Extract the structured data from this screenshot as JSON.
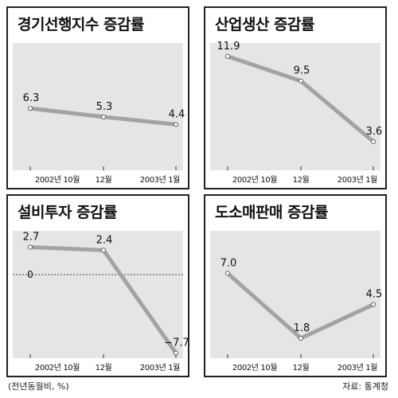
{
  "footer": {
    "unit_note": "(전년동월비, %)",
    "source": "자료: 통계청"
  },
  "chart_data": [
    {
      "type": "line",
      "title": "경기선행지수 증감률",
      "categories": [
        "2002년 10월",
        "12월",
        "2003년 1월"
      ],
      "values": [
        6.3,
        5.3,
        4.4
      ],
      "value_labels": [
        "6.3",
        "5.3",
        "4.4"
      ],
      "ylim": [
        -1,
        14
      ],
      "zero_line": false,
      "grid": false,
      "colors": {
        "line": "#a3a3a3",
        "plot_bg": "#e5e5e5"
      }
    },
    {
      "type": "line",
      "title": "산업생산 증감률",
      "categories": [
        "2002년 10월",
        "12월",
        "2003년 1월"
      ],
      "values": [
        11.9,
        9.5,
        3.6
      ],
      "value_labels": [
        "11.9",
        "9.5",
        "3.6"
      ],
      "ylim": [
        0.8,
        13.2
      ],
      "zero_line": false,
      "grid": false,
      "colors": {
        "line": "#a3a3a3",
        "plot_bg": "#e5e5e5"
      }
    },
    {
      "type": "line",
      "title": "설비투자 증감률",
      "categories": [
        "2002년 10월",
        "12월",
        "2003년 1월"
      ],
      "values": [
        2.7,
        2.4,
        -7.7
      ],
      "value_labels": [
        "2.7",
        "2.4",
        "−7.7"
      ],
      "ylim": [
        -8.2,
        4.3
      ],
      "zero_line": true,
      "zero_label": "0",
      "grid": false,
      "colors": {
        "line": "#a3a3a3",
        "plot_bg": "#e5e5e5"
      }
    },
    {
      "type": "line",
      "title": "도소매판매 증감률",
      "categories": [
        "2002년 10월",
        "12월",
        "2003년 1월"
      ],
      "values": [
        7.0,
        1.8,
        4.5
      ],
      "value_labels": [
        "7.0",
        "1.8",
        "4.5"
      ],
      "ylim": [
        0.2,
        10.4
      ],
      "zero_line": false,
      "grid": false,
      "colors": {
        "line": "#a3a3a3",
        "plot_bg": "#e5e5e5"
      }
    }
  ]
}
